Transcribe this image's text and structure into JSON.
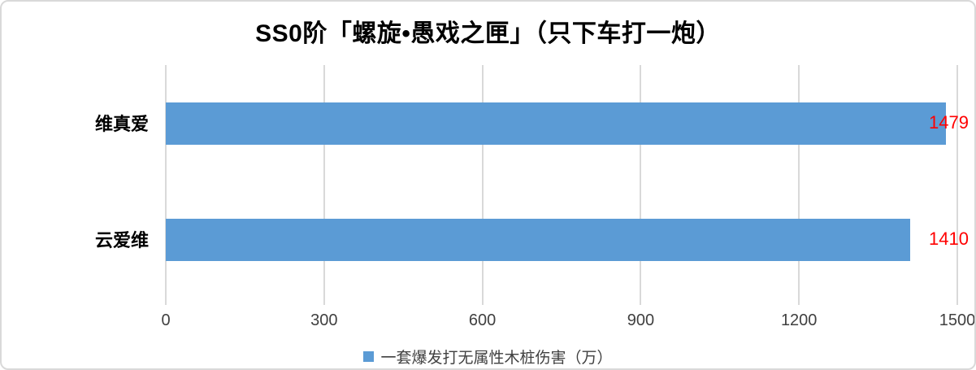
{
  "chart_data": {
    "type": "bar",
    "orientation": "horizontal",
    "title": "SS0阶「螺旋•愚戏之匣」（只下车打一炮）",
    "categories": [
      "维真爱",
      "云爱维"
    ],
    "values": [
      1479,
      1410
    ],
    "series_name": "一套爆发打无属性木桩伤害（万）",
    "xlim": [
      0,
      1500
    ],
    "x_ticks": [
      0,
      300,
      600,
      900,
      1200,
      1500
    ],
    "grid": true,
    "legend_position": "bottom",
    "value_labels": "outside-end-red",
    "colors": {
      "bar": "#5B9BD5",
      "value_label": "#FF0000",
      "gridline": "#D9D9D9",
      "axis_text": "#404040"
    }
  }
}
